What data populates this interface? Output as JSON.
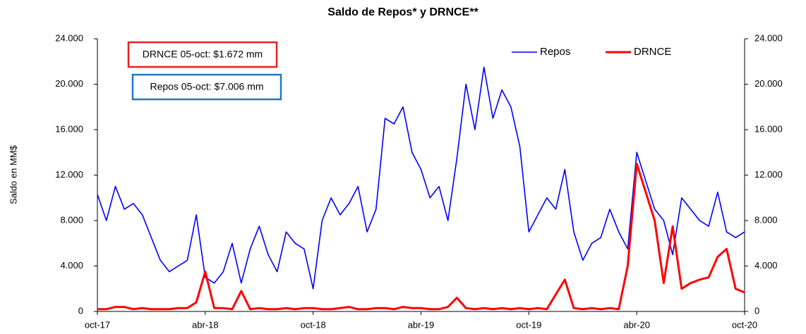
{
  "chart_data": {
    "type": "line",
    "title": "Saldo de Repos* y DRNCE**",
    "y_label": "Saldo en MM$",
    "annotations": [
      "DRNCE 05-oct: $1.672 mm",
      "Repos 05-oct: $7.006 mm"
    ],
    "categories": [
      "oct-17",
      null,
      null,
      null,
      null,
      null,
      null,
      null,
      null,
      null,
      null,
      null,
      "abr-18",
      null,
      null,
      null,
      null,
      null,
      null,
      null,
      null,
      null,
      null,
      null,
      "oct-18",
      null,
      null,
      null,
      null,
      null,
      null,
      null,
      null,
      null,
      null,
      null,
      "abr-19",
      null,
      null,
      null,
      null,
      null,
      null,
      null,
      null,
      null,
      null,
      null,
      "oct-19",
      null,
      null,
      null,
      null,
      null,
      null,
      null,
      null,
      null,
      null,
      null,
      "abr-20",
      null,
      null,
      null,
      null,
      null,
      null,
      null,
      null,
      null,
      null,
      null,
      "oct-20"
    ],
    "series": [
      {
        "name": "Repos",
        "color": "#0000ff",
        "axis": "y",
        "values": [
          10300,
          8000,
          11000,
          9000,
          9500,
          8500,
          6500,
          4500,
          3500,
          4000,
          4500,
          8500,
          3000,
          2500,
          3500,
          6000,
          2500,
          5500,
          7500,
          5000,
          3500,
          7000,
          6000,
          5500,
          2000,
          8000,
          10000,
          8500,
          9500,
          11000,
          7000,
          9000,
          17000,
          16500,
          18000,
          14000,
          12500,
          10000,
          11000,
          8000,
          13500,
          20000,
          16000,
          21500,
          17000,
          19500,
          18000,
          14500,
          7000,
          8500,
          10000,
          9000,
          12500,
          7000,
          4500,
          6000,
          6500,
          9000,
          7000,
          5500,
          14000,
          11500,
          9000,
          8000,
          5000,
          10000,
          9000,
          8000,
          7500,
          10500,
          7000,
          6500,
          7000
        ]
      },
      {
        "name": "DRNCE",
        "color": "#ff0000",
        "axis": "y2",
        "values": [
          200,
          200,
          400,
          400,
          200,
          300,
          200,
          200,
          200,
          300,
          300,
          800,
          3500,
          300,
          300,
          200,
          1800,
          200,
          300,
          200,
          200,
          300,
          200,
          300,
          300,
          200,
          200,
          300,
          400,
          200,
          200,
          300,
          300,
          200,
          400,
          300,
          300,
          200,
          200,
          400,
          1200,
          300,
          200,
          300,
          200,
          300,
          200,
          300,
          200,
          300,
          200,
          1500,
          2800,
          300,
          200,
          300,
          200,
          300,
          200,
          4000,
          13000,
          10500,
          8000,
          2500,
          7500,
          2000,
          2500,
          2800,
          3000,
          4800,
          5500,
          2000,
          1672
        ]
      }
    ],
    "ylim": [
      0,
      24000
    ],
    "yticks": [
      0,
      {
        "value": 4000,
        "label": "4.000"
      },
      {
        "value": 8000,
        "label": "8.000"
      },
      {
        "value": 12000,
        "label": "12.000"
      },
      {
        "value": 16000,
        "label": "16.000"
      },
      {
        "value": 20000,
        "label": "20.000"
      },
      {
        "value": 24000,
        "label": "24.000"
      }
    ],
    "y2lim": [
      0,
      24000
    ],
    "y2ticks": [
      0,
      {
        "value": 4000,
        "label": "4.000"
      },
      {
        "value": 8000,
        "label": "8.000"
      },
      {
        "value": 12000,
        "label": "12.000"
      },
      {
        "value": 16000,
        "label": "16.000"
      },
      {
        "value": 20000,
        "label": "20.000"
      },
      {
        "value": 24000,
        "label": "24.000"
      }
    ],
    "legend": "top-right",
    "grid": false
  }
}
